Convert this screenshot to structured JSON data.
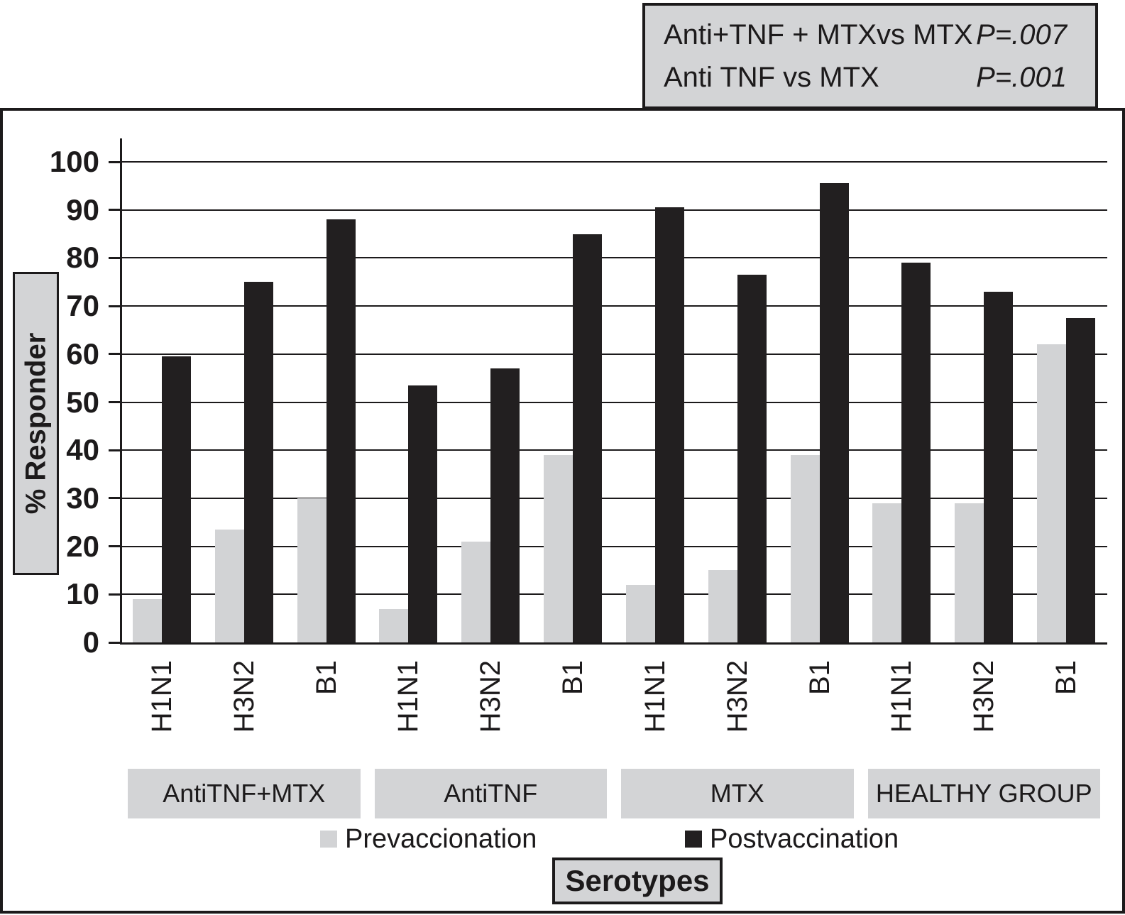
{
  "stats_box": {
    "rows": [
      {
        "label": "Anti+TNF + MTXvs MTX",
        "value": "P=.007"
      },
      {
        "label": "Anti TNF vs MTX",
        "value": "P=.001"
      }
    ]
  },
  "y_axis_label": "% Responder",
  "x_axis_label": "Serotypes",
  "legend": [
    {
      "label": "Prevaccionation",
      "color": "#d2d3d5"
    },
    {
      "label": "Postvaccination",
      "color": "#221f20"
    }
  ],
  "chart_data": {
    "type": "bar",
    "title": "",
    "ylabel": "% Responder",
    "xlabel": "Serotypes",
    "ylim": [
      0,
      100
    ],
    "ytick_step": 10,
    "grid": true,
    "legend_position": "bottom",
    "categories": [
      "H1N1",
      "H3N2",
      "B1",
      "H1N1",
      "H3N2",
      "B1",
      "H1N1",
      "H3N2",
      "B1",
      "H1N1",
      "H3N2",
      "B1"
    ],
    "groups": [
      {
        "label": "AntiTNF+MTX",
        "span": 3
      },
      {
        "label": "AntiTNF",
        "span": 3
      },
      {
        "label": "MTX",
        "span": 3
      },
      {
        "label": "HEALTHY GROUP",
        "span": 3
      }
    ],
    "series": [
      {
        "name": "Prevaccionation",
        "color": "#d2d3d5",
        "values": [
          9,
          23.5,
          30,
          7,
          21,
          39,
          12,
          15,
          39,
          29,
          29,
          62
        ]
      },
      {
        "name": "Postvaccination",
        "color": "#221f20",
        "values": [
          59.5,
          75,
          88,
          53.5,
          57,
          85,
          90.5,
          76.5,
          95.5,
          79,
          73,
          67.5
        ]
      }
    ]
  }
}
